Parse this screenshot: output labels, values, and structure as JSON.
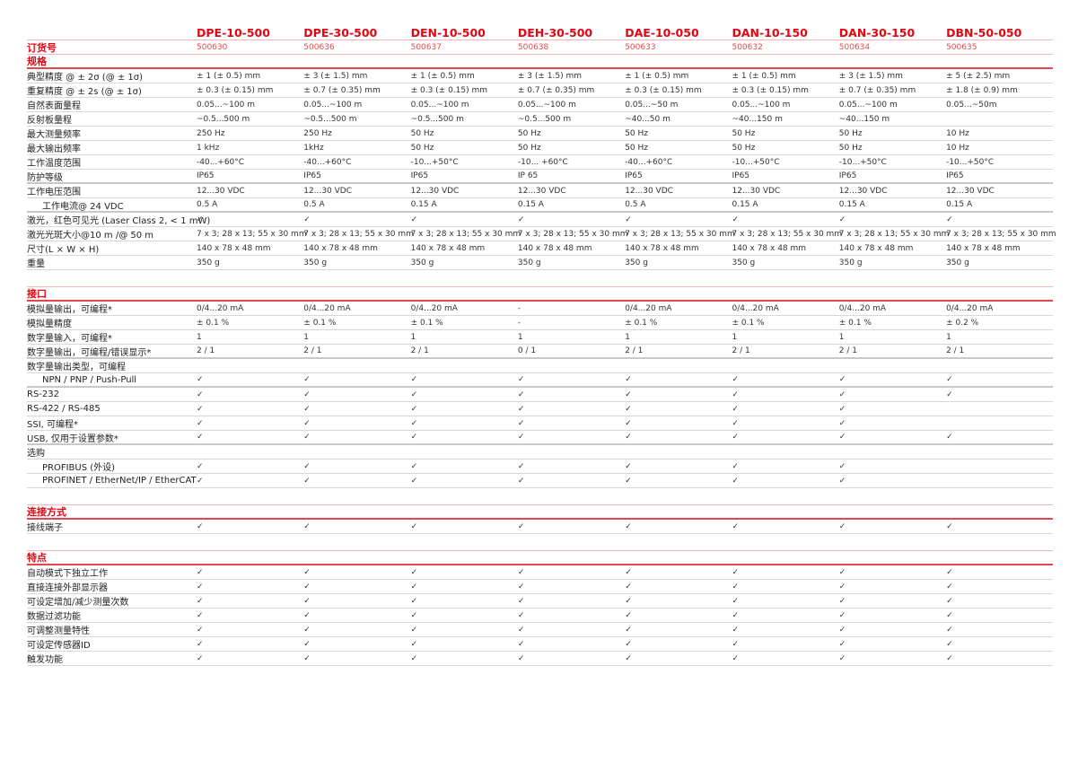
{
  "models": [
    "DPE-10-500",
    "DPE-30-500",
    "DEN-10-500",
    "DEH-30-500",
    "DAE-10-050",
    "DAN-10-150",
    "DAN-30-150",
    "DBN-50-050"
  ],
  "order": {
    "label": "订货号",
    "values": [
      "500630",
      "500636",
      "500637",
      "500638",
      "500633",
      "500632",
      "500634",
      "500635"
    ]
  },
  "accent_color": "#e30613",
  "sections": [
    {
      "title": "规格",
      "rows": [
        {
          "label": "典型精度 @ ± 2σ (@ ± 1σ)",
          "values": [
            "± 1 (± 0.5) mm",
            "± 3 (± 1.5) mm",
            "± 1 (± 0.5) mm",
            "± 3 (± 1.5) mm",
            "± 1 (± 0.5) mm",
            "± 1 (± 0.5) mm",
            "± 3 (± 1.5) mm",
            "± 5 (± 2.5) mm"
          ]
        },
        {
          "label": "重复精度 @ ± 2s (@ ± 1σ)",
          "values": [
            "± 0.3 (± 0.15) mm",
            "± 0.7 (± 0.35) mm",
            "± 0.3 (± 0.15) mm",
            "± 0.7 (± 0.35) mm",
            "± 0.3 (± 0.15) mm",
            "± 0.3 (± 0.15) mm",
            "± 0.7 (± 0.35) mm",
            "± 1.8 (± 0.9) mm"
          ]
        },
        {
          "label": "自然表面量程",
          "values": [
            "0.05...~100 m",
            "0.05...~100 m",
            "0.05...~100 m",
            "0.05...~100 m",
            "0.05...~50 m",
            "0.05...~100 m",
            "0.05...~100 m",
            "0.05...~50m"
          ]
        },
        {
          "label": "反射板量程",
          "values": [
            " ~0.5...500 m",
            " ~0.5...500 m",
            " ~0.5...500 m",
            " ~0.5...500 m",
            "~40...50 m",
            "~40...150 m",
            "~40...150 m",
            ""
          ]
        },
        {
          "label": "最大测量频率",
          "values": [
            "250 Hz",
            "250 Hz",
            "50 Hz",
            "50 Hz",
            "50 Hz",
            "50 Hz",
            "50 Hz",
            "10 Hz"
          ]
        },
        {
          "label": "最大输出频率",
          "values": [
            "1 kHz",
            "1kHz",
            "50 Hz",
            "50 Hz",
            "50 Hz",
            "50 Hz",
            "50 Hz",
            "10 Hz"
          ]
        },
        {
          "label": "工作温度范围",
          "values": [
            "-40...+60°C",
            "-40...+60°C",
            "-10...+50°C",
            "-10... +60°C",
            "-40...+60°C",
            "-10...+50°C",
            "-10...+50°C",
            "-10...+50°C"
          ]
        },
        {
          "label": "防护等级",
          "thick": true,
          "values": [
            "IP65",
            "IP65",
            "IP65",
            "IP 65",
            "IP65",
            "IP65",
            "IP65",
            "IP65"
          ]
        },
        {
          "label": "工作电压范围",
          "values": [
            "12...30 VDC",
            "12...30 VDC",
            "12...30 VDC",
            "12...30 VDC",
            "12...30 VDC",
            "12...30 VDC",
            "12...30 VDC",
            "12...30 VDC"
          ]
        },
        {
          "label": "工作电流@ 24 VDC",
          "indent": true,
          "thick": true,
          "values": [
            "0.5 A",
            "0.5 A",
            "0.15 A",
            "0.15 A",
            "0.5 A",
            "0.15 A",
            "0.15 A",
            "0.15 A"
          ]
        },
        {
          "label": "激光，红色可见光 (Laser Class 2, < 1 mW)",
          "values": [
            "✓",
            "✓",
            "✓",
            "✓",
            "✓",
            "✓",
            "✓",
            "✓"
          ]
        },
        {
          "label": "激光光斑大小@10 m /@ 50 m",
          "values": [
            "7 x 3; 28 x 13; 55 x 30 mm",
            "7 x 3; 28 x 13; 55 x 30 mm",
            "7 x 3; 28 x 13; 55 x 30 mm",
            "7 x 3; 28 x 13; 55 x 30 mm",
            "7 x 3; 28 x 13; 55 x 30 mm",
            "7 x 3; 28 x 13; 55 x 30 mm",
            "7 x 3; 28 x 13; 55 x 30 mm",
            "7 x 3; 28 x 13; 55 x 30 mm"
          ]
        },
        {
          "label": "尺寸(L × W × H)",
          "values": [
            "140 x 78 x 48 mm",
            "140 x 78 x 48 mm",
            "140 x 78 x 48 mm",
            "140 x 78 x 48 mm",
            "140 x 78 x 48 mm",
            "140 x 78 x 48 mm",
            "140 x 78 x 48 mm",
            "140 x 78 x 48 mm"
          ]
        },
        {
          "label": "重量",
          "values": [
            "350 g",
            "350 g",
            "350 g",
            "350 g",
            "350 g",
            "350 g",
            "350 g",
            "350 g"
          ]
        }
      ]
    },
    {
      "title": "接口",
      "rows": [
        {
          "label": "模拟量输出，可编程*",
          "values": [
            "0/4...20 mA",
            "0/4...20 mA",
            "0/4...20 mA",
            "-",
            "0/4...20 mA",
            "0/4...20 mA",
            "0/4...20 mA",
            "0/4...20 mA"
          ]
        },
        {
          "label": "模拟量精度",
          "values": [
            "± 0.1 %",
            "± 0.1 %",
            "± 0.1 %",
            "-",
            "± 0.1 %",
            "± 0.1 %",
            "± 0.1 %",
            "± 0.2 %"
          ]
        },
        {
          "label": "数字量输入，可编程*",
          "values": [
            "1",
            "1",
            "1",
            "1",
            "1",
            "1",
            "1",
            "1"
          ]
        },
        {
          "label": "数字量输出，可编程/错误显示*",
          "thick": true,
          "values": [
            "2 / 1",
            "2 / 1",
            "2 / 1",
            "0 / 1",
            "2 / 1",
            "2 / 1",
            "2 / 1",
            "2 / 1"
          ]
        },
        {
          "label": "数字量输出类型，可编程",
          "values": [
            "",
            "",
            "",
            "",
            "",
            "",
            "",
            ""
          ]
        },
        {
          "label": "NPN / PNP / Push-Pull",
          "indent": true,
          "thick": true,
          "values": [
            "✓",
            "✓",
            "✓",
            "✓",
            "✓",
            "✓",
            "✓",
            "✓"
          ]
        },
        {
          "label": "RS-232",
          "values": [
            "✓",
            "✓",
            "✓",
            "✓",
            "✓",
            "✓",
            "✓",
            "✓"
          ]
        },
        {
          "label": "RS-422 / RS-485",
          "values": [
            "✓",
            "✓",
            "✓",
            "✓",
            "✓",
            "✓",
            "✓",
            ""
          ]
        },
        {
          "label": "SSI, 可编程*",
          "values": [
            "✓",
            "✓",
            "✓",
            "✓",
            "✓",
            "✓",
            "✓",
            ""
          ]
        },
        {
          "label": "USB, 仅用于设置参数*",
          "thick": true,
          "values": [
            "✓",
            "✓",
            "✓",
            "✓",
            "✓",
            "✓",
            "✓",
            "✓"
          ]
        },
        {
          "label": "选购",
          "values": [
            "",
            "",
            "",
            "",
            "",
            "",
            "",
            ""
          ]
        },
        {
          "label": "PROFIBUS (外设)",
          "indent": true,
          "values": [
            "✓",
            "✓",
            "✓",
            "✓",
            "✓",
            "✓",
            "✓",
            ""
          ]
        },
        {
          "label": "PROFINET / EtherNet/IP / EtherCAT",
          "indent": true,
          "values": [
            "✓",
            "✓",
            "✓",
            "✓",
            "✓",
            "✓",
            "✓",
            ""
          ]
        }
      ]
    },
    {
      "title": "连接方式",
      "rows": [
        {
          "label": "接线端子",
          "values": [
            "✓",
            "✓",
            "✓",
            "✓",
            "✓",
            "✓",
            "✓",
            "✓"
          ]
        }
      ]
    },
    {
      "title": "特点",
      "rows": [
        {
          "label": "自动模式下独立工作",
          "values": [
            "✓",
            "✓",
            "✓",
            "✓",
            "✓",
            "✓",
            "✓",
            "✓"
          ]
        },
        {
          "label": "直接连接外部显示器",
          "values": [
            "✓",
            "✓",
            "✓",
            "✓",
            "✓",
            "✓",
            "✓",
            "✓"
          ]
        },
        {
          "label": "可设定增加/减少测量次数",
          "values": [
            "✓",
            "✓",
            "✓",
            "✓",
            "✓",
            "✓",
            "✓",
            "✓"
          ]
        },
        {
          "label": "数据过滤功能",
          "values": [
            "✓",
            "✓",
            "✓",
            "✓",
            "✓",
            "✓",
            "✓",
            "✓"
          ]
        },
        {
          "label": "可调整测量特性",
          "values": [
            "✓",
            "✓",
            "✓",
            "✓",
            "✓",
            "✓",
            "✓",
            "✓"
          ]
        },
        {
          "label": "可设定传感器ID",
          "values": [
            "✓",
            "✓",
            "✓",
            "✓",
            "✓",
            "✓",
            "✓",
            "✓"
          ]
        },
        {
          "label": "触发功能",
          "values": [
            "✓",
            "✓",
            "✓",
            "✓",
            "✓",
            "✓",
            "✓",
            "✓"
          ]
        }
      ]
    }
  ]
}
